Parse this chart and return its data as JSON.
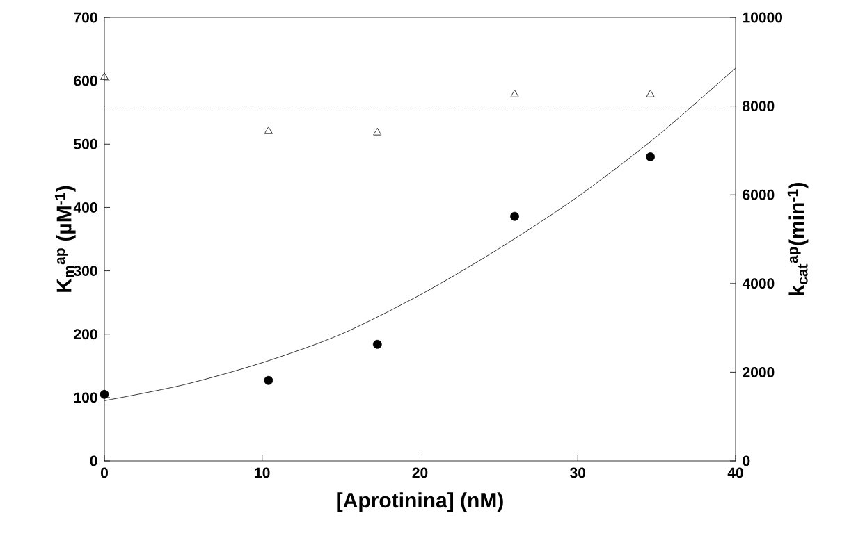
{
  "chart_data": {
    "type": "scatter",
    "xlabel": "[Aprotinina] (nM)",
    "ylabel": "K$_{m}$$^{ap}$ (µM$^{-1}$)",
    "y2label": "k$_{cat}$$^{ap}$(min$^{-1}$)",
    "xlim": [
      0,
      40
    ],
    "xticks": [
      0,
      10,
      20,
      30,
      40
    ],
    "ylim": [
      0,
      700
    ],
    "yticks": [
      0,
      100,
      200,
      300,
      400,
      500,
      600,
      700
    ],
    "y2lim": [
      0,
      10000
    ],
    "y2ticks": [
      0,
      2000,
      4000,
      6000,
      8000,
      10000
    ],
    "grid": false,
    "series": [
      {
        "color": "#000000",
        "marker": "circle",
        "x": [
          0,
          10.4,
          17.3,
          26,
          34.6
        ],
        "values": [
          105,
          127,
          184,
          386,
          480
        ]
      },
      {
        "color": "#000000",
        "marker": "triangle",
        "axis": "y2",
        "x": [
          0,
          10.4,
          17.3,
          26,
          34.6
        ],
        "values": [
          8650,
          7430,
          7400,
          8260,
          8260
        ]
      },
      {
        "type": "line",
        "color": "#000000",
        "marker": "none",
        "line_style": "solid",
        "x": [
          0,
          5,
          10,
          15,
          20,
          25,
          30,
          35,
          40
        ],
        "values": [
          95,
          120,
          155,
          200,
          262,
          335,
          417,
          512,
          620
        ]
      }
    ],
    "ref_lines": [
      {
        "axis": "y2",
        "value": 8000,
        "color": "#000000",
        "line_style": "dotted"
      }
    ]
  }
}
